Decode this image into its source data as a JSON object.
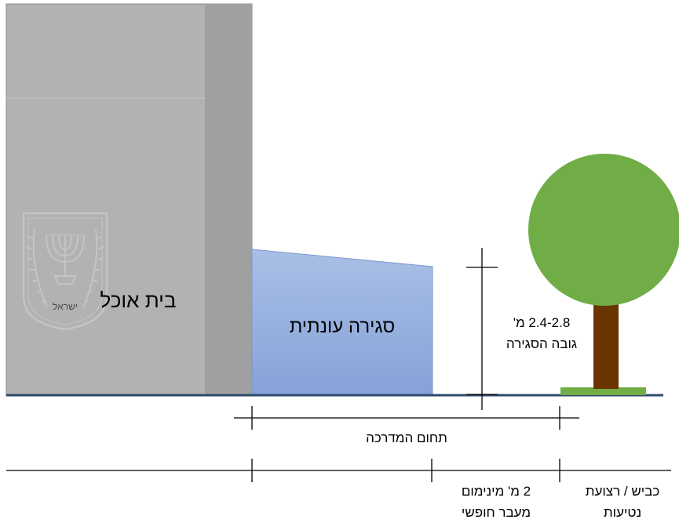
{
  "labels": {
    "building": "בית אוכל",
    "enclosure": "סגירה עונתית",
    "height_value": "2.4-2.8 מ'",
    "height_caption": "גובה הסגירה",
    "sidewalk_zone": "תחום המדרכה",
    "free_pass_line1": "2 מ' מינימום",
    "free_pass_line2": "מעבר חופשי",
    "road_line1": "כביש / רצועת",
    "road_line2": "נטיעות"
  },
  "emblem": {
    "caption": "ישראל"
  },
  "colors": {
    "building": "#b2b2b2",
    "building_side": "#a0a0a0",
    "enclosure": "#8faadc",
    "ground_line": "#2e4a6b",
    "tree_crown": "#70ad47",
    "tree_trunk": "#6a3500",
    "grass": "#70ad47"
  }
}
